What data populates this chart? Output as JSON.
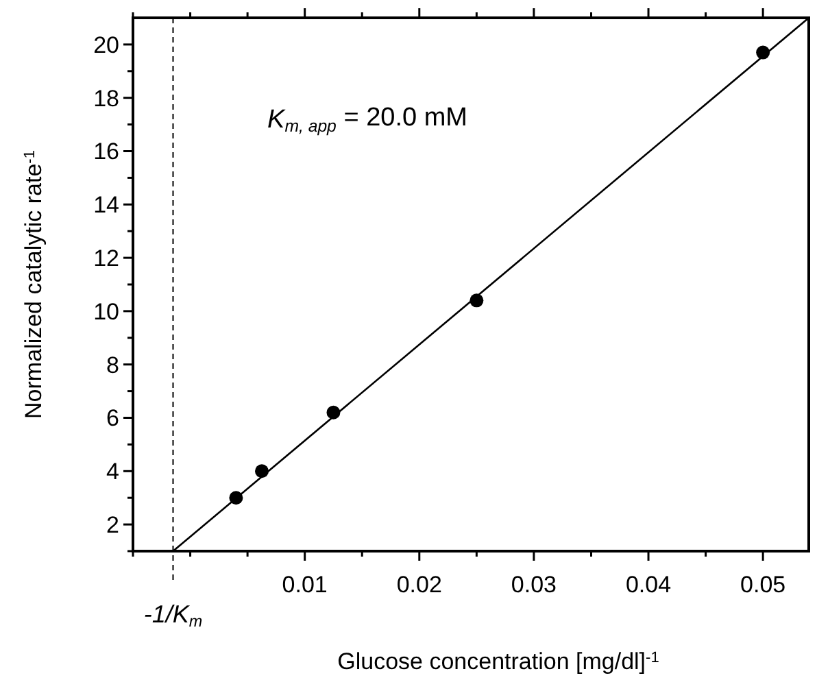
{
  "chart_data": {
    "type": "scatter",
    "xlabel": "Glucose concentration [mg/dl]$^{-1}$",
    "ylabel": "Normalized catalytic rate$^{-1}$",
    "annotations": [
      "K$_{m, app}$ = 20.0 mM"
    ],
    "xlim": [
      -0.005,
      0.054
    ],
    "xticks": [
      {
        "value": -0.005,
        "label": null
      },
      {
        "value": 0,
        "label": null
      },
      {
        "value": 0.005,
        "label": null
      },
      0.01,
      {
        "value": 0.015,
        "label": null
      },
      0.02,
      {
        "value": 0.025,
        "label": null
      },
      0.03,
      {
        "value": 0.035,
        "label": null
      },
      0.04,
      {
        "value": 0.045,
        "label": null
      },
      0.05
    ],
    "ylim": [
      1,
      21
    ],
    "yticks": [
      {
        "value": 1,
        "label": null
      },
      2,
      {
        "value": 3,
        "label": null
      },
      4,
      {
        "value": 5,
        "label": null
      },
      6,
      {
        "value": 7,
        "label": null
      },
      8,
      {
        "value": 9,
        "label": null
      },
      10,
      {
        "value": 11,
        "label": null
      },
      12,
      {
        "value": 13,
        "label": null
      },
      14,
      {
        "value": 15,
        "label": null
      },
      16,
      {
        "value": 17,
        "label": null
      },
      18,
      {
        "value": 19,
        "label": null
      },
      20
    ],
    "marker": "circle",
    "grid": false,
    "ref_lines": [
      {
        "axis": "x",
        "value": -0.0015,
        "label": "-1/K$_{m}$",
        "line_style": "dashed",
        "color": "#000000"
      }
    ],
    "series": [
      {
        "color": "#000000",
        "x": [
          0.004,
          0.00625,
          0.0125,
          0.025,
          0.05
        ],
        "values": [
          3,
          4,
          6.2,
          10.4,
          19.7
        ]
      },
      {
        "type": "line",
        "color": "#000000",
        "x": [
          -0.0015,
          0.054
        ],
        "values": [
          1,
          21
        ],
        "marker": "none",
        "line_style": "solid"
      }
    ]
  }
}
